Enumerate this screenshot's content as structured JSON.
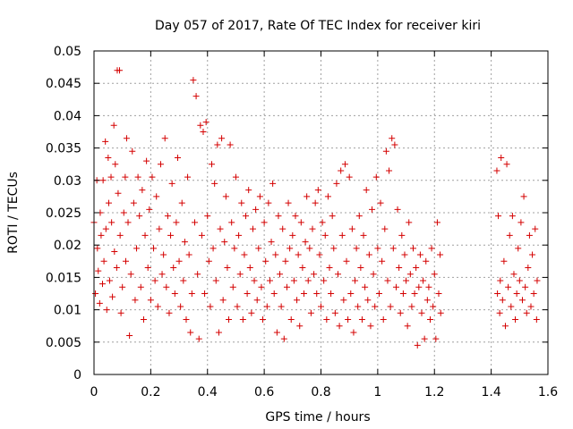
{
  "chart_data": {
    "type": "scatter",
    "title": "Day 057 of 2017, Rate Of TEC Index for receiver kiri",
    "xlabel": "GPS time / hours",
    "ylabel": "ROTI / TECUs",
    "xlim": [
      0,
      1.6
    ],
    "ylim": [
      0,
      0.05
    ],
    "xticks": [
      "0",
      "0.2",
      "0.4",
      "0.6",
      "0.8",
      "1",
      "1.2",
      "1.4",
      "1.6"
    ],
    "yticks": [
      "0",
      "0.005",
      "0.01",
      "0.015",
      "0.02",
      "0.025",
      "0.03",
      "0.035",
      "0.04",
      "0.045",
      "0.05"
    ],
    "grid": true,
    "marker": "+",
    "marker_color": "#d40000",
    "series": [
      {
        "points": [
          [
            0.0,
            0.0235
          ],
          [
            0.005,
            0.0125
          ],
          [
            0.01,
            0.03
          ],
          [
            0.012,
            0.0195
          ],
          [
            0.015,
            0.016
          ],
          [
            0.02,
            0.011
          ],
          [
            0.022,
            0.025
          ],
          [
            0.025,
            0.0215
          ],
          [
            0.03,
            0.014
          ],
          [
            0.032,
            0.03
          ],
          [
            0.035,
            0.0175
          ],
          [
            0.04,
            0.036
          ],
          [
            0.042,
            0.0225
          ],
          [
            0.045,
            0.01
          ],
          [
            0.05,
            0.0335
          ],
          [
            0.052,
            0.0265
          ],
          [
            0.055,
            0.0145
          ],
          [
            0.06,
            0.0305
          ],
          [
            0.062,
            0.0235
          ],
          [
            0.065,
            0.012
          ],
          [
            0.07,
            0.0385
          ],
          [
            0.072,
            0.019
          ],
          [
            0.075,
            0.0325
          ],
          [
            0.08,
            0.0165
          ],
          [
            0.082,
            0.047
          ],
          [
            0.085,
            0.028
          ],
          [
            0.09,
            0.047
          ],
          [
            0.092,
            0.0215
          ],
          [
            0.095,
            0.0095
          ],
          [
            0.1,
            0.0135
          ],
          [
            0.105,
            0.025
          ],
          [
            0.11,
            0.0305
          ],
          [
            0.112,
            0.0175
          ],
          [
            0.115,
            0.0365
          ],
          [
            0.12,
            0.0235
          ],
          [
            0.125,
            0.006
          ],
          [
            0.13,
            0.0155
          ],
          [
            0.135,
            0.0345
          ],
          [
            0.14,
            0.0265
          ],
          [
            0.145,
            0.0115
          ],
          [
            0.15,
            0.0195
          ],
          [
            0.155,
            0.0305
          ],
          [
            0.16,
            0.0245
          ],
          [
            0.165,
            0.0135
          ],
          [
            0.17,
            0.0285
          ],
          [
            0.175,
            0.0085
          ],
          [
            0.18,
            0.0215
          ],
          [
            0.185,
            0.033
          ],
          [
            0.19,
            0.0165
          ],
          [
            0.195,
            0.0255
          ],
          [
            0.2,
            0.0115
          ],
          [
            0.205,
            0.0305
          ],
          [
            0.21,
            0.0195
          ],
          [
            0.215,
            0.0145
          ],
          [
            0.22,
            0.0275
          ],
          [
            0.225,
            0.0105
          ],
          [
            0.23,
            0.0225
          ],
          [
            0.235,
            0.0325
          ],
          [
            0.24,
            0.0155
          ],
          [
            0.245,
            0.0185
          ],
          [
            0.25,
            0.0365
          ],
          [
            0.255,
            0.0135
          ],
          [
            0.26,
            0.0245
          ],
          [
            0.265,
            0.0095
          ],
          [
            0.27,
            0.0215
          ],
          [
            0.275,
            0.0295
          ],
          [
            0.28,
            0.0165
          ],
          [
            0.285,
            0.0125
          ],
          [
            0.29,
            0.0235
          ],
          [
            0.295,
            0.0335
          ],
          [
            0.3,
            0.0175
          ],
          [
            0.305,
            0.0105
          ],
          [
            0.31,
            0.0265
          ],
          [
            0.315,
            0.0145
          ],
          [
            0.32,
            0.0205
          ],
          [
            0.325,
            0.0085
          ],
          [
            0.33,
            0.0305
          ],
          [
            0.335,
            0.0185
          ],
          [
            0.34,
            0.0065
          ],
          [
            0.345,
            0.0125
          ],
          [
            0.35,
            0.0455
          ],
          [
            0.355,
            0.0235
          ],
          [
            0.36,
            0.043
          ],
          [
            0.365,
            0.0155
          ],
          [
            0.37,
            0.0055
          ],
          [
            0.375,
            0.0385
          ],
          [
            0.38,
            0.0215
          ],
          [
            0.385,
            0.0375
          ],
          [
            0.39,
            0.0125
          ],
          [
            0.395,
            0.039
          ],
          [
            0.4,
            0.0245
          ],
          [
            0.405,
            0.0175
          ],
          [
            0.41,
            0.0105
          ],
          [
            0.415,
            0.0325
          ],
          [
            0.42,
            0.0195
          ],
          [
            0.425,
            0.0295
          ],
          [
            0.43,
            0.0145
          ],
          [
            0.435,
            0.0355
          ],
          [
            0.44,
            0.0065
          ],
          [
            0.445,
            0.0225
          ],
          [
            0.45,
            0.0365
          ],
          [
            0.455,
            0.0115
          ],
          [
            0.46,
            0.0205
          ],
          [
            0.465,
            0.0275
          ],
          [
            0.47,
            0.0165
          ],
          [
            0.475,
            0.0085
          ],
          [
            0.48,
            0.0355
          ],
          [
            0.485,
            0.0235
          ],
          [
            0.49,
            0.0135
          ],
          [
            0.495,
            0.0195
          ],
          [
            0.5,
            0.0305
          ],
          [
            0.505,
            0.0105
          ],
          [
            0.51,
            0.0215
          ],
          [
            0.515,
            0.0155
          ],
          [
            0.52,
            0.0265
          ],
          [
            0.525,
            0.0085
          ],
          [
            0.53,
            0.0185
          ],
          [
            0.535,
            0.0245
          ],
          [
            0.54,
            0.0125
          ],
          [
            0.545,
            0.0285
          ],
          [
            0.55,
            0.0165
          ],
          [
            0.555,
            0.0095
          ],
          [
            0.56,
            0.0225
          ],
          [
            0.565,
            0.0145
          ],
          [
            0.57,
            0.0255
          ],
          [
            0.575,
            0.0115
          ],
          [
            0.58,
            0.0195
          ],
          [
            0.585,
            0.0275
          ],
          [
            0.59,
            0.0135
          ],
          [
            0.595,
            0.0085
          ],
          [
            0.6,
            0.0235
          ],
          [
            0.605,
            0.0175
          ],
          [
            0.61,
            0.0105
          ],
          [
            0.615,
            0.0265
          ],
          [
            0.62,
            0.0145
          ],
          [
            0.625,
            0.0205
          ],
          [
            0.63,
            0.0295
          ],
          [
            0.635,
            0.0125
          ],
          [
            0.64,
            0.0185
          ],
          [
            0.645,
            0.0065
          ],
          [
            0.65,
            0.0245
          ],
          [
            0.655,
            0.0155
          ],
          [
            0.66,
            0.0105
          ],
          [
            0.665,
            0.0225
          ],
          [
            0.67,
            0.0055
          ],
          [
            0.675,
            0.0175
          ],
          [
            0.68,
            0.0135
          ],
          [
            0.685,
            0.0265
          ],
          [
            0.69,
            0.0195
          ],
          [
            0.695,
            0.0085
          ],
          [
            0.7,
            0.0215
          ],
          [
            0.705,
            0.0145
          ],
          [
            0.71,
            0.0245
          ],
          [
            0.715,
            0.0115
          ],
          [
            0.72,
            0.0185
          ],
          [
            0.725,
            0.0075
          ],
          [
            0.73,
            0.0235
          ],
          [
            0.735,
            0.0165
          ],
          [
            0.74,
            0.0125
          ],
          [
            0.745,
            0.0205
          ],
          [
            0.75,
            0.0275
          ],
          [
            0.755,
            0.0145
          ],
          [
            0.76,
            0.0195
          ],
          [
            0.765,
            0.0095
          ],
          [
            0.77,
            0.0225
          ],
          [
            0.775,
            0.0155
          ],
          [
            0.78,
            0.0265
          ],
          [
            0.785,
            0.0125
          ],
          [
            0.79,
            0.0285
          ],
          [
            0.795,
            0.0185
          ],
          [
            0.8,
            0.0105
          ],
          [
            0.805,
            0.0235
          ],
          [
            0.81,
            0.0145
          ],
          [
            0.815,
            0.0215
          ],
          [
            0.82,
            0.0085
          ],
          [
            0.825,
            0.0275
          ],
          [
            0.83,
            0.0165
          ],
          [
            0.835,
            0.0125
          ],
          [
            0.84,
            0.0245
          ],
          [
            0.845,
            0.0195
          ],
          [
            0.85,
            0.0095
          ],
          [
            0.855,
            0.0295
          ],
          [
            0.86,
            0.0155
          ],
          [
            0.865,
            0.0075
          ],
          [
            0.87,
            0.0315
          ],
          [
            0.875,
            0.0215
          ],
          [
            0.88,
            0.0115
          ],
          [
            0.885,
            0.0325
          ],
          [
            0.89,
            0.0175
          ],
          [
            0.895,
            0.0085
          ],
          [
            0.9,
            0.0305
          ],
          [
            0.905,
            0.0125
          ],
          [
            0.91,
            0.0225
          ],
          [
            0.915,
            0.0065
          ],
          [
            0.92,
            0.0145
          ],
          [
            0.925,
            0.0195
          ],
          [
            0.93,
            0.0105
          ],
          [
            0.935,
            0.0245
          ],
          [
            0.94,
            0.0165
          ],
          [
            0.945,
            0.0085
          ],
          [
            0.95,
            0.0215
          ],
          [
            0.955,
            0.0135
          ],
          [
            0.96,
            0.0285
          ],
          [
            0.965,
            0.0115
          ],
          [
            0.97,
            0.0185
          ],
          [
            0.975,
            0.0075
          ],
          [
            0.98,
            0.0255
          ],
          [
            0.985,
            0.0155
          ],
          [
            0.99,
            0.0105
          ],
          [
            0.995,
            0.0305
          ],
          [
            1.0,
            0.0195
          ],
          [
            1.005,
            0.0125
          ],
          [
            1.01,
            0.0265
          ],
          [
            1.015,
            0.0175
          ],
          [
            1.02,
            0.0085
          ],
          [
            1.025,
            0.0225
          ],
          [
            1.03,
            0.0345
          ],
          [
            1.035,
            0.0145
          ],
          [
            1.04,
            0.0315
          ],
          [
            1.045,
            0.0105
          ],
          [
            1.05,
            0.0365
          ],
          [
            1.055,
            0.0195
          ],
          [
            1.06,
            0.0355
          ],
          [
            1.065,
            0.0135
          ],
          [
            1.07,
            0.0255
          ],
          [
            1.075,
            0.0165
          ],
          [
            1.08,
            0.0095
          ],
          [
            1.085,
            0.0215
          ],
          [
            1.09,
            0.0125
          ],
          [
            1.095,
            0.0185
          ],
          [
            1.1,
            0.0145
          ],
          [
            1.105,
            0.0075
          ],
          [
            1.11,
            0.0235
          ],
          [
            1.115,
            0.0155
          ],
          [
            1.12,
            0.0105
          ],
          [
            1.125,
            0.0195
          ],
          [
            1.13,
            0.0125
          ],
          [
            1.135,
            0.0165
          ],
          [
            1.14,
            0.0045
          ],
          [
            1.145,
            0.0135
          ],
          [
            1.15,
            0.0185
          ],
          [
            1.155,
            0.0095
          ],
          [
            1.16,
            0.0145
          ],
          [
            1.165,
            0.0055
          ],
          [
            1.17,
            0.0175
          ],
          [
            1.175,
            0.0115
          ],
          [
            1.18,
            0.0135
          ],
          [
            1.185,
            0.0085
          ],
          [
            1.19,
            0.0195
          ],
          [
            1.195,
            0.0105
          ],
          [
            1.2,
            0.0155
          ],
          [
            1.205,
            0.0055
          ],
          [
            1.21,
            0.0235
          ],
          [
            1.215,
            0.0125
          ],
          [
            1.22,
            0.0185
          ],
          [
            1.222,
            0.0095
          ],
          [
            1.42,
            0.0315
          ],
          [
            1.422,
            0.0125
          ],
          [
            1.425,
            0.0245
          ],
          [
            1.43,
            0.0095
          ],
          [
            1.432,
            0.0145
          ],
          [
            1.435,
            0.0335
          ],
          [
            1.44,
            0.0115
          ],
          [
            1.445,
            0.0175
          ],
          [
            1.45,
            0.0075
          ],
          [
            1.455,
            0.0325
          ],
          [
            1.46,
            0.0135
          ],
          [
            1.465,
            0.0215
          ],
          [
            1.47,
            0.0105
          ],
          [
            1.475,
            0.0245
          ],
          [
            1.48,
            0.0155
          ],
          [
            1.485,
            0.0085
          ],
          [
            1.49,
            0.0125
          ],
          [
            1.495,
            0.0195
          ],
          [
            1.5,
            0.0145
          ],
          [
            1.505,
            0.0235
          ],
          [
            1.51,
            0.0115
          ],
          [
            1.515,
            0.0275
          ],
          [
            1.52,
            0.0135
          ],
          [
            1.525,
            0.0095
          ],
          [
            1.53,
            0.0165
          ],
          [
            1.535,
            0.0215
          ],
          [
            1.54,
            0.0105
          ],
          [
            1.545,
            0.0185
          ],
          [
            1.55,
            0.0125
          ],
          [
            1.555,
            0.0225
          ],
          [
            1.56,
            0.0085
          ],
          [
            1.562,
            0.0145
          ]
        ]
      }
    ]
  }
}
